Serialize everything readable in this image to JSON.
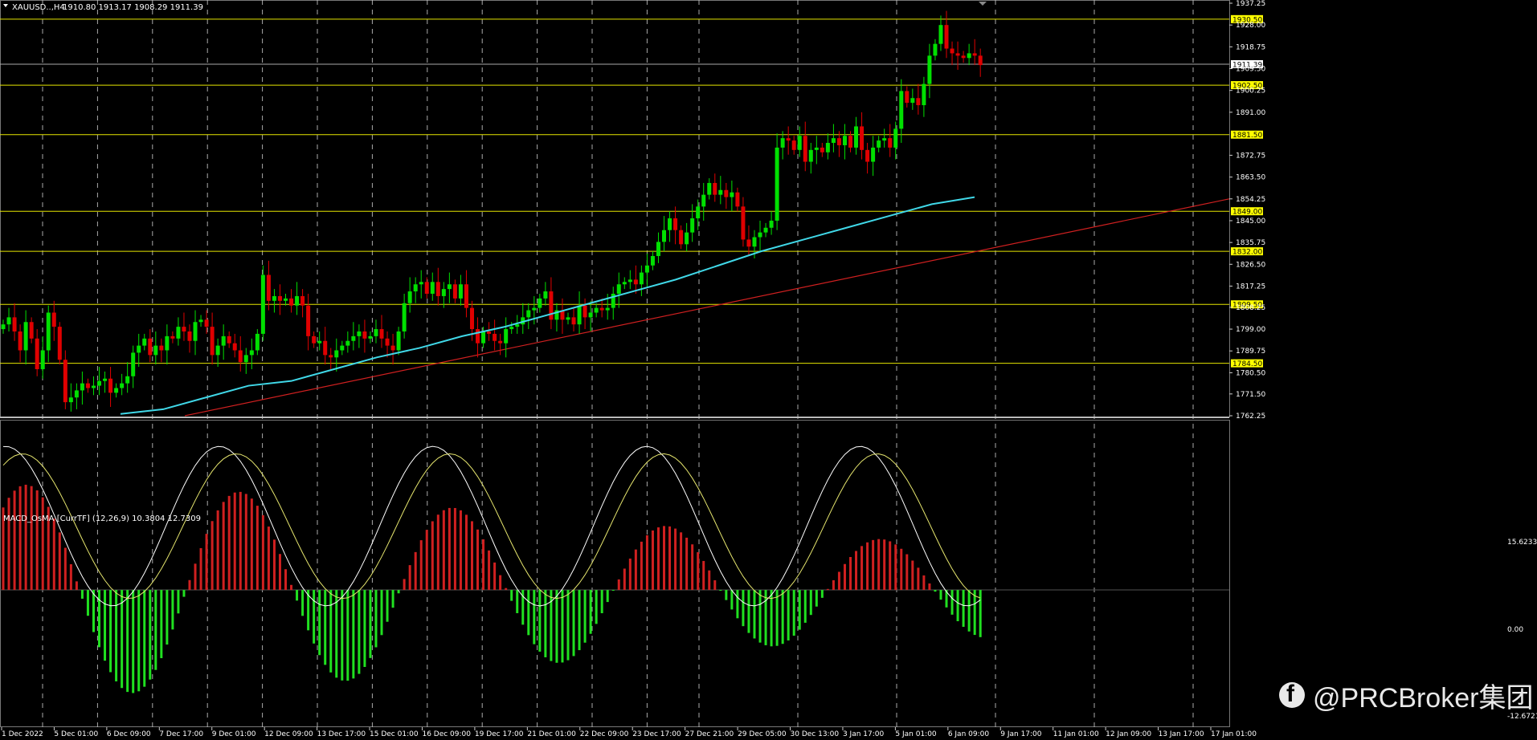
{
  "header": {
    "symbol": "XAUUSD..,H4",
    "ohlc": "1910.80 1913.17 1908.29 1911.39"
  },
  "indicator": {
    "label": "MACD_OsMA [CurrTF] (12,26,9) 10.3804 12.7309",
    "axis_top": "15.6233",
    "axis_zero": "0.00",
    "axis_bottom": "-12.6721"
  },
  "watermark": {
    "icon": "facebook-icon",
    "text": "@PRCBroker集团"
  },
  "colors": {
    "background": "#000000",
    "grid": "#c8c8c8",
    "bull_candle": "#00e000",
    "bear_candle": "#e00000",
    "level_line": "#e6e600",
    "moving_average": "#40d8e8",
    "trendline": "#d02020",
    "histogram_positive": "#d02020",
    "histogram_negative": "#20e020",
    "macd_line": "#ffffff",
    "signal_line": "#e6e66e"
  },
  "chart_data": {
    "type": "candlestick",
    "title": "XAUUSD..,H4",
    "y_axis_ticks": [
      "1937.25",
      "1928.00",
      "1918.75",
      "1909.50",
      "1900.25",
      "1891.00",
      "1872.75",
      "1863.50",
      "1854.25",
      "1845.00",
      "1835.75",
      "1826.50",
      "1817.25",
      "1808.25",
      "1799.00",
      "1789.75",
      "1780.50",
      "1771.50",
      "1762.25"
    ],
    "ylim": [
      1762.25,
      1937.25
    ],
    "current_price": "1911.39",
    "horizontal_levels": [
      "1930.50",
      "1902.50",
      "1881.50",
      "1849.00",
      "1832.00",
      "1809.50",
      "1784.50"
    ],
    "x_axis_labels": [
      "1 Dec 2022",
      "5 Dec 01:00",
      "6 Dec 09:00",
      "7 Dec 17:00",
      "9 Dec 01:00",
      "12 Dec 09:00",
      "13 Dec 17:00",
      "15 Dec 01:00",
      "16 Dec 09:00",
      "19 Dec 17:00",
      "21 Dec 01:00",
      "22 Dec 09:00",
      "23 Dec 17:00",
      "27 Dec 21:00",
      "29 Dec 05:00",
      "30 Dec 13:00",
      "3 Jan 17:00",
      "5 Jan 01:00",
      "6 Jan 09:00",
      "9 Jan 17:00",
      "11 Jan 01:00",
      "12 Jan 09:00",
      "13 Jan 17:00",
      "17 Jan 01:00"
    ],
    "close": [
      1801,
      1804,
      1798,
      1790,
      1802,
      1795,
      1782,
      1790,
      1806,
      1800,
      1786,
      1768,
      1770,
      1773,
      1776,
      1774,
      1775,
      1777,
      1778,
      1772,
      1774,
      1776,
      1779,
      1789,
      1792,
      1795,
      1788,
      1792,
      1790,
      1796,
      1795,
      1800,
      1798,
      1794,
      1802,
      1803,
      1800,
      1788,
      1792,
      1796,
      1793,
      1790,
      1785,
      1788,
      1790,
      1797,
      1822,
      1811,
      1813,
      1811,
      1812,
      1809,
      1813,
      1809,
      1796,
      1793,
      1794,
      1788,
      1787,
      1790,
      1792,
      1794,
      1796,
      1798,
      1795,
      1796,
      1799,
      1795,
      1792,
      1790,
      1798,
      1810,
      1815,
      1818,
      1819,
      1814,
      1819,
      1813,
      1816,
      1818,
      1812,
      1818,
      1808,
      1799,
      1793,
      1798,
      1797,
      1794,
      1793,
      1799,
      1800,
      1801,
      1804,
      1807,
      1808,
      1812,
      1815,
      1803,
      1807,
      1803,
      1804,
      1801,
      1809,
      1804,
      1806,
      1808,
      1807,
      1808,
      1814,
      1818,
      1819,
      1820,
      1818,
      1823,
      1826,
      1830,
      1836,
      1841,
      1846,
      1841,
      1835,
      1840,
      1846,
      1851,
      1856,
      1861,
      1856,
      1858,
      1855,
      1857,
      1851,
      1837,
      1834,
      1838,
      1840,
      1842,
      1845,
      1876,
      1880,
      1879,
      1875,
      1881,
      1870,
      1875,
      1876,
      1874,
      1878,
      1880,
      1877,
      1881,
      1876,
      1885,
      1875,
      1870,
      1876,
      1879,
      1880,
      1876,
      1884,
      1900,
      1895,
      1897,
      1894,
      1903,
      1915,
      1920,
      1928,
      1918,
      1916,
      1915,
      1914,
      1916,
      1915,
      1911
    ],
    "ma_approx": [
      1763,
      1765,
      1770,
      1775,
      1777,
      1782,
      1787,
      1791,
      1796,
      1800,
      1805,
      1810,
      1815,
      1820,
      1826,
      1832,
      1837,
      1842,
      1847,
      1852,
      1855
    ],
    "macd_histogram_range": [
      -12.6721,
      15.6233
    ],
    "macd_values": [
      10.3804,
      12.7309
    ]
  }
}
